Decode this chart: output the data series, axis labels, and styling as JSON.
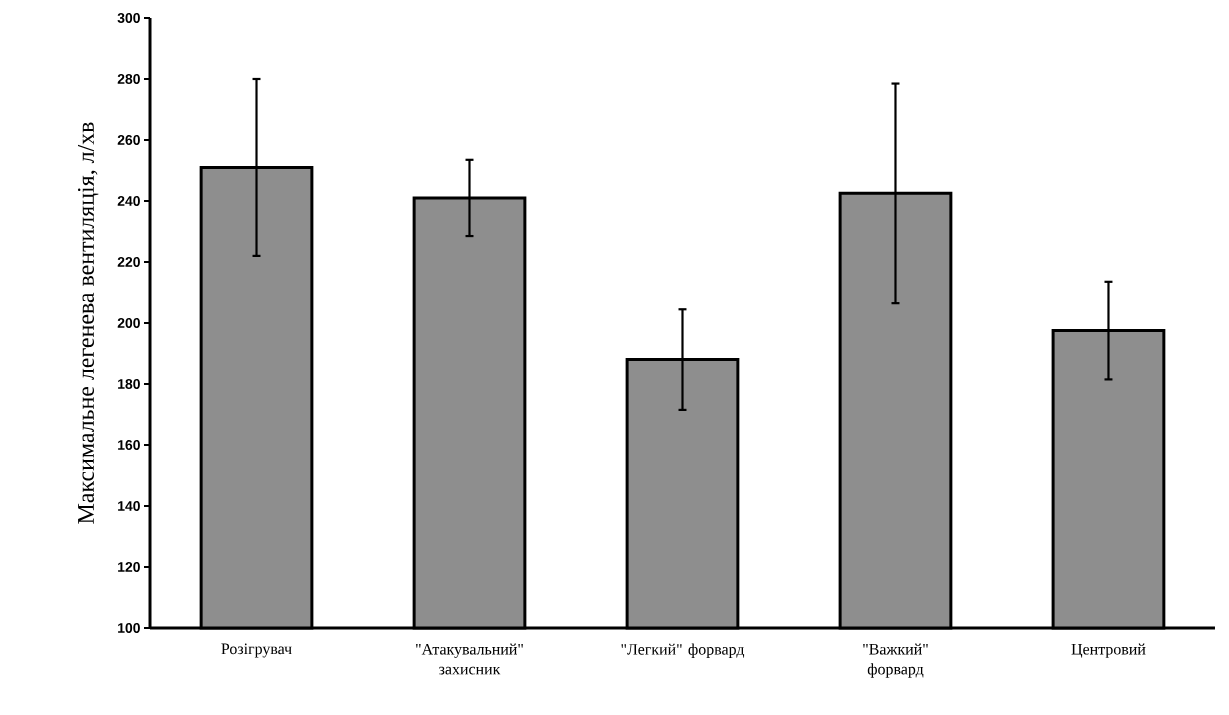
{
  "chart_data": {
    "type": "bar",
    "ylabel": "Максимальне легенева вентиляція, л/хв",
    "categories": [
      "Розігрувач",
      "\"Атакувальний\" захисник",
      "\"Легкий\" форвард",
      "\"Важкий\" форвард",
      "Центровий"
    ],
    "values": [
      251,
      241,
      188,
      242.5,
      197.5
    ],
    "errors": [
      29,
      12.5,
      16.5,
      36,
      16
    ],
    "color": "#8e8e8e",
    "ylim": [
      100,
      300
    ],
    "yticks": [
      100,
      120,
      140,
      160,
      180,
      200,
      220,
      240,
      260,
      280,
      300
    ],
    "grid": false
  }
}
